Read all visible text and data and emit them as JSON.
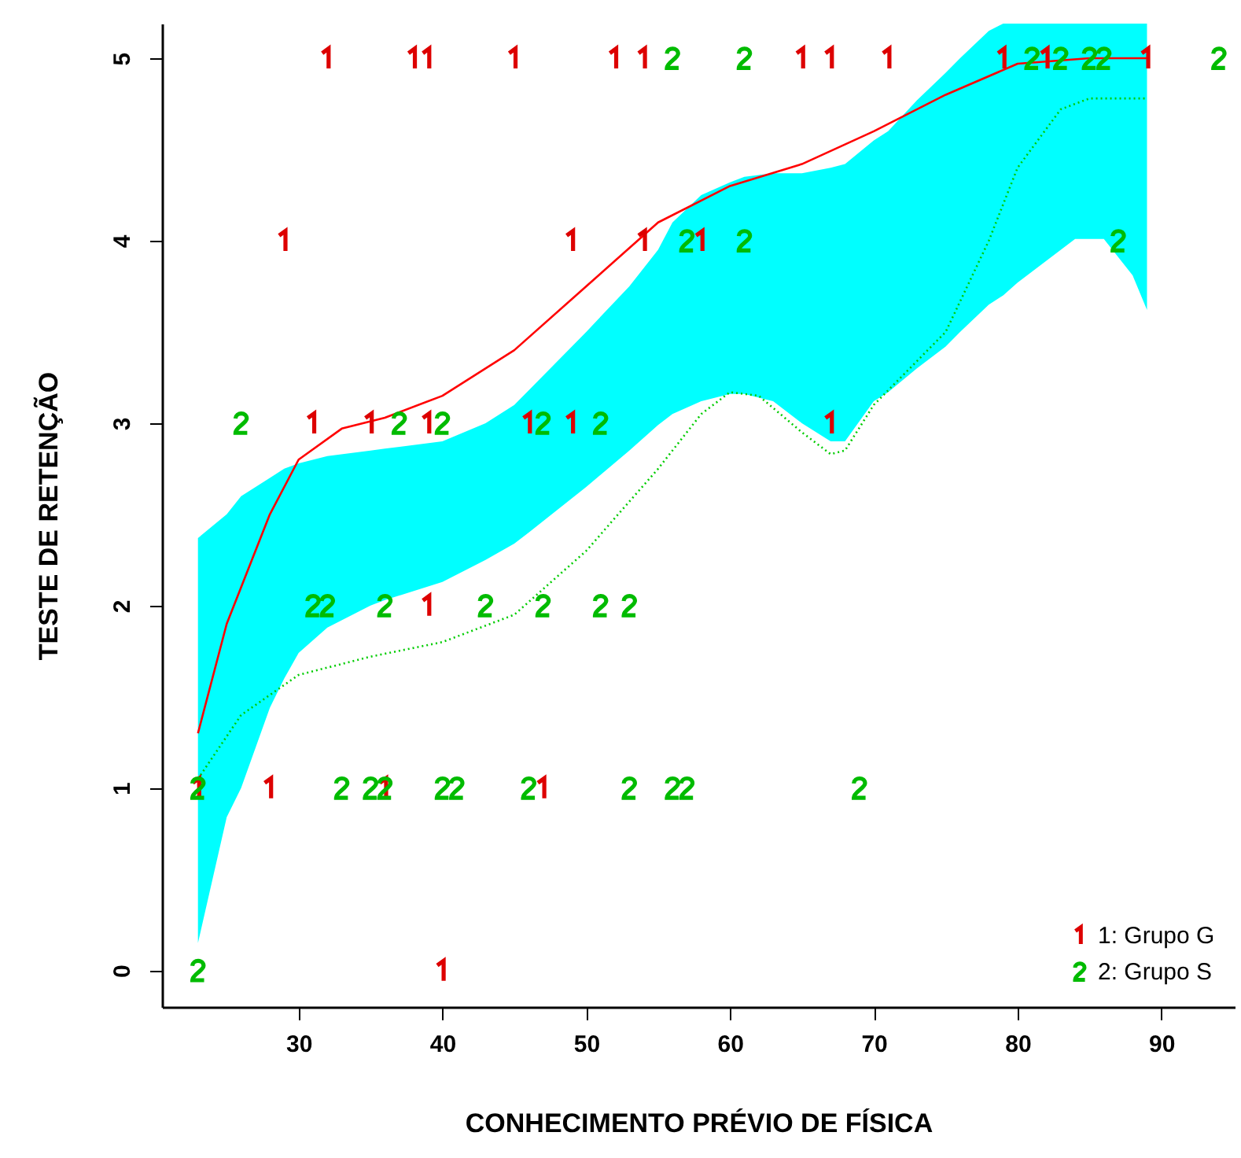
{
  "chart_data": {
    "type": "scatter",
    "xlabel": "CONHECIMENTO PRÉVIO DE FÍSICA",
    "ylabel": "TESTE DE RETENÇÃO",
    "xlim": [
      20.5,
      95.1
    ],
    "xticks": [
      30,
      40,
      50,
      60,
      70,
      80,
      90
    ],
    "ylim": [
      -0.2,
      5.19
    ],
    "yticks": [
      0,
      1,
      2,
      3,
      4,
      5
    ],
    "grid": false,
    "legend": "bottom right",
    "series": [
      {
        "type": "area",
        "color": "#00ffff",
        "x": [
          23,
          25,
          26,
          28,
          29,
          30,
          32,
          35,
          36,
          40,
          43,
          45,
          46,
          50,
          53,
          55,
          56,
          58,
          60,
          61,
          63,
          65,
          67,
          68,
          70,
          71,
          73,
          75,
          76,
          78,
          79,
          80,
          84,
          86,
          88,
          89
        ],
        "values": [
          null,
          null,
          null,
          null,
          null,
          null,
          null,
          null,
          null,
          null,
          null,
          null,
          null,
          null,
          null,
          null,
          null,
          null,
          null,
          null,
          null,
          null,
          null,
          null,
          null,
          null,
          null,
          null,
          null,
          null,
          null,
          null,
          null,
          null,
          null,
          null
        ],
        "lower": [
          0.15,
          0.84,
          1.0,
          1.44,
          1.6,
          1.74,
          1.88,
          2.0,
          2.03,
          2.13,
          2.25,
          2.34,
          2.4,
          2.65,
          2.85,
          2.99,
          3.05,
          3.12,
          3.16,
          3.16,
          3.12,
          3.0,
          2.9,
          2.9,
          3.12,
          3.17,
          3.3,
          3.42,
          3.5,
          3.65,
          3.7,
          3.77,
          4.01,
          4.01,
          3.81,
          3.62
        ],
        "upper": [
          2.37,
          2.5,
          2.6,
          2.7,
          2.75,
          2.78,
          2.82,
          2.85,
          2.86,
          2.9,
          3.0,
          3.1,
          3.18,
          3.5,
          3.75,
          3.95,
          4.1,
          4.25,
          4.32,
          4.35,
          4.37,
          4.37,
          4.4,
          4.42,
          4.55,
          4.6,
          4.77,
          4.92,
          5.0,
          5.15,
          5.19,
          5.19,
          5.19,
          5.19,
          5.19,
          5.19
        ]
      },
      {
        "type": "line",
        "color": "#ff0000",
        "line_style": "solid",
        "x": [
          23,
          25,
          28,
          30,
          33,
          36,
          40,
          45,
          50,
          55,
          60,
          65,
          70,
          75,
          80,
          85,
          89
        ],
        "values": [
          1.3,
          1.9,
          2.5,
          2.8,
          2.97,
          3.03,
          3.15,
          3.4,
          3.75,
          4.1,
          4.3,
          4.42,
          4.6,
          4.8,
          4.97,
          5.0,
          5.0
        ]
      },
      {
        "type": "line",
        "color": "#00cc00",
        "line_style": "dotted",
        "x": [
          23,
          26,
          30,
          35,
          40,
          45,
          50,
          55,
          58,
          60,
          62,
          65,
          67,
          68,
          70,
          75,
          78,
          80,
          83,
          85,
          89
        ],
        "values": [
          1.05,
          1.4,
          1.62,
          1.72,
          1.8,
          1.95,
          2.3,
          2.75,
          3.05,
          3.17,
          3.15,
          2.95,
          2.83,
          2.85,
          3.1,
          3.5,
          4.0,
          4.4,
          4.72,
          4.78,
          4.78
        ]
      },
      {
        "name": "1: Grupo G",
        "color": "#dd0000",
        "x": [
          32,
          38,
          39,
          45,
          52,
          54,
          65,
          67,
          71,
          79,
          82,
          89,
          29,
          49,
          54,
          58,
          31,
          35,
          39,
          46,
          49,
          67,
          39,
          23,
          28,
          36,
          47,
          40
        ],
        "values": [
          5,
          5,
          5,
          5,
          5,
          5,
          5,
          5,
          5,
          5,
          5,
          5,
          4,
          4,
          4,
          4,
          3,
          3,
          3,
          3,
          3,
          3,
          2,
          1,
          1,
          1,
          1,
          0
        ]
      },
      {
        "name": "2: Grupo S",
        "color": "#00bb00",
        "x": [
          56,
          61,
          81,
          83,
          85,
          86,
          94,
          57,
          61,
          87,
          26,
          37,
          40,
          47,
          51,
          31,
          32,
          36,
          43,
          47,
          51,
          53,
          23,
          33,
          35,
          36,
          40,
          41,
          46,
          53,
          56,
          57,
          69,
          23
        ],
        "values": [
          5,
          5,
          5,
          5,
          5,
          5,
          5,
          4,
          4,
          4,
          3,
          3,
          3,
          3,
          3,
          2,
          2,
          2,
          2,
          2,
          2,
          2,
          1,
          1,
          1,
          1,
          1,
          1,
          1,
          1,
          1,
          1,
          1,
          0
        ]
      }
    ]
  }
}
